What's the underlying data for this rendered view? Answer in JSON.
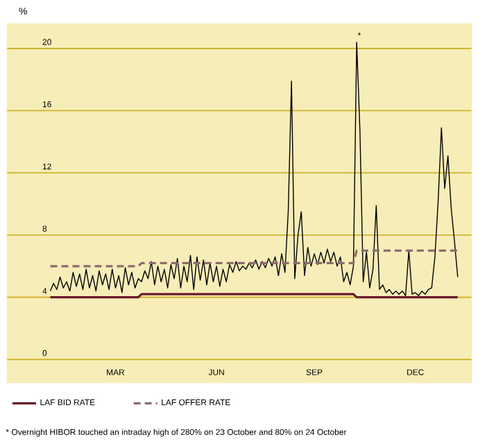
{
  "chart_data": {
    "type": "line",
    "ylabel": "%",
    "categories": [
      null,
      null,
      null,
      null,
      null,
      null,
      null,
      null,
      null,
      null,
      null,
      null,
      null,
      null,
      null,
      null,
      null,
      null,
      null,
      null,
      "MAR",
      null,
      null,
      null,
      null,
      null,
      null,
      null,
      null,
      null,
      null,
      null,
      null,
      null,
      null,
      null,
      null,
      null,
      null,
      null,
      null,
      null,
      null,
      null,
      null,
      null,
      null,
      null,
      null,
      null,
      null,
      "JUN",
      null,
      null,
      null,
      null,
      null,
      null,
      null,
      null,
      null,
      null,
      null,
      null,
      null,
      null,
      null,
      null,
      null,
      null,
      null,
      null,
      null,
      null,
      null,
      null,
      null,
      null,
      null,
      null,
      null,
      "SEP",
      null,
      null,
      null,
      null,
      null,
      null,
      null,
      null,
      null,
      null,
      null,
      null,
      null,
      null,
      null,
      null,
      null,
      null,
      null,
      null,
      null,
      null,
      null,
      null,
      null,
      null,
      null,
      null,
      null,
      null,
      "DEC",
      null,
      null,
      null,
      null,
      null,
      null,
      null,
      null,
      null,
      null,
      null,
      null,
      null
    ],
    "ylim": [
      -1.5,
      21.6
    ],
    "yticks": [
      0,
      4,
      8,
      12,
      16,
      20
    ],
    "grid": "y",
    "legend": "bottom",
    "marker": "none",
    "series": [
      {
        "color": "#000000",
        "line_style": "solid",
        "values": [
          4.4,
          4.9,
          4.5,
          5.3,
          4.6,
          5.0,
          4.4,
          5.6,
          4.7,
          5.5,
          4.5,
          5.8,
          4.6,
          5.4,
          4.4,
          5.7,
          4.8,
          5.5,
          4.5,
          5.8,
          4.6,
          5.4,
          4.3,
          5.9,
          4.8,
          5.6,
          4.6,
          5.2,
          5.0,
          5.7,
          5.2,
          6.3,
          4.8,
          6.0,
          5.0,
          5.8,
          4.6,
          6.1,
          5.2,
          6.5,
          4.6,
          6.0,
          5.0,
          6.7,
          4.5,
          6.6,
          5.1,
          6.4,
          4.8,
          6.2,
          5.0,
          6.0,
          4.7,
          5.8,
          5.0,
          6.1,
          5.6,
          6.3,
          5.7,
          6.0,
          5.8,
          6.2,
          5.9,
          6.4,
          5.8,
          6.3,
          5.9,
          6.5,
          6.0,
          6.6,
          5.4,
          6.8,
          5.6,
          9.5,
          17.9,
          5.2,
          8.0,
          9.5,
          5.4,
          7.2,
          6.0,
          6.8,
          6.1,
          6.9,
          6.2,
          7.1,
          6.3,
          6.9,
          6.0,
          6.6,
          5.0,
          5.6,
          4.8,
          6.0,
          20.4,
          14.7,
          5.0,
          6.9,
          4.6,
          5.8,
          9.9,
          4.5,
          4.8,
          4.3,
          4.5,
          4.2,
          4.4,
          4.2,
          4.4,
          4.1,
          7.0,
          4.2,
          4.3,
          4.1,
          4.4,
          4.2,
          4.5,
          4.6,
          6.6,
          10.2,
          14.9,
          11.0,
          13.1,
          9.7,
          7.6,
          5.3
        ]
      },
      {
        "name": "LAF BID RATE",
        "color": "#6b1a2a",
        "line_style": "solid",
        "values": [
          4,
          4,
          4,
          4,
          4,
          4,
          4,
          4,
          4,
          4,
          4,
          4,
          4,
          4,
          4,
          4,
          4,
          4,
          4,
          4,
          4,
          4,
          4,
          4,
          4,
          4,
          4,
          4,
          4.2,
          4.2,
          4.2,
          4.2,
          4.2,
          4.2,
          4.2,
          4.2,
          4.2,
          4.2,
          4.2,
          4.2,
          4.2,
          4.2,
          4.2,
          4.2,
          4.2,
          4.2,
          4.2,
          4.2,
          4.2,
          4.2,
          4.2,
          4.2,
          4.2,
          4.2,
          4.2,
          4.2,
          4.2,
          4.2,
          4.2,
          4.2,
          4.2,
          4.2,
          4.2,
          4.2,
          4.2,
          4.2,
          4.2,
          4.2,
          4.2,
          4.2,
          4.2,
          4.2,
          4.2,
          4.2,
          4.2,
          4.2,
          4.2,
          4.2,
          4.2,
          4.2,
          4.2,
          4.2,
          4.2,
          4.2,
          4.2,
          4.2,
          4.2,
          4.2,
          4.2,
          4.2,
          4.2,
          4.2,
          4.2,
          4.2,
          4,
          4,
          4,
          4,
          4,
          4,
          4,
          4,
          4,
          4,
          4,
          4,
          4,
          4,
          4,
          4,
          4,
          4,
          4,
          4,
          4,
          4,
          4,
          4,
          4,
          4,
          4,
          4,
          4,
          4,
          4,
          4
        ]
      },
      {
        "name": "LAF OFFER RATE",
        "color": "#8c6d6d",
        "line_style": "dashed",
        "values": [
          6,
          6,
          6,
          6,
          6,
          6,
          6,
          6,
          6,
          6,
          6,
          6,
          6,
          6,
          6,
          6,
          6,
          6,
          6,
          6,
          6,
          6,
          6,
          6,
          6,
          6,
          6,
          6,
          6.2,
          6.2,
          6.2,
          6.2,
          6.2,
          6.2,
          6.2,
          6.2,
          6.2,
          6.2,
          6.2,
          6.2,
          6.2,
          6.2,
          6.2,
          6.2,
          6.2,
          6.2,
          6.2,
          6.2,
          6.2,
          6.2,
          6.2,
          6.2,
          6.2,
          6.2,
          6.2,
          6.2,
          6.2,
          6.2,
          6.2,
          6.2,
          6.2,
          6.2,
          6.2,
          6.2,
          6.2,
          6.2,
          6.2,
          6.2,
          6.2,
          6.2,
          6.2,
          6.2,
          6.2,
          6.2,
          6.2,
          6.2,
          6.2,
          6.2,
          6.2,
          6.2,
          6.2,
          6.2,
          6.2,
          6.2,
          6.2,
          6.2,
          6.2,
          6.2,
          6.2,
          6.2,
          6.2,
          6.2,
          6.2,
          6.2,
          7,
          7,
          7,
          7,
          7,
          7,
          7,
          7,
          7,
          7,
          7,
          7,
          7,
          7,
          7,
          7,
          7,
          7,
          7,
          7,
          7,
          7,
          7,
          7,
          7,
          7,
          7,
          7,
          7,
          7,
          7,
          7
        ]
      }
    ],
    "annotations": [
      {
        "text": "*",
        "y": 20.6
      },
      "* Overnight HIBOR touched an intraday high of 280% on 23 October and 80% on 24 October"
    ]
  }
}
